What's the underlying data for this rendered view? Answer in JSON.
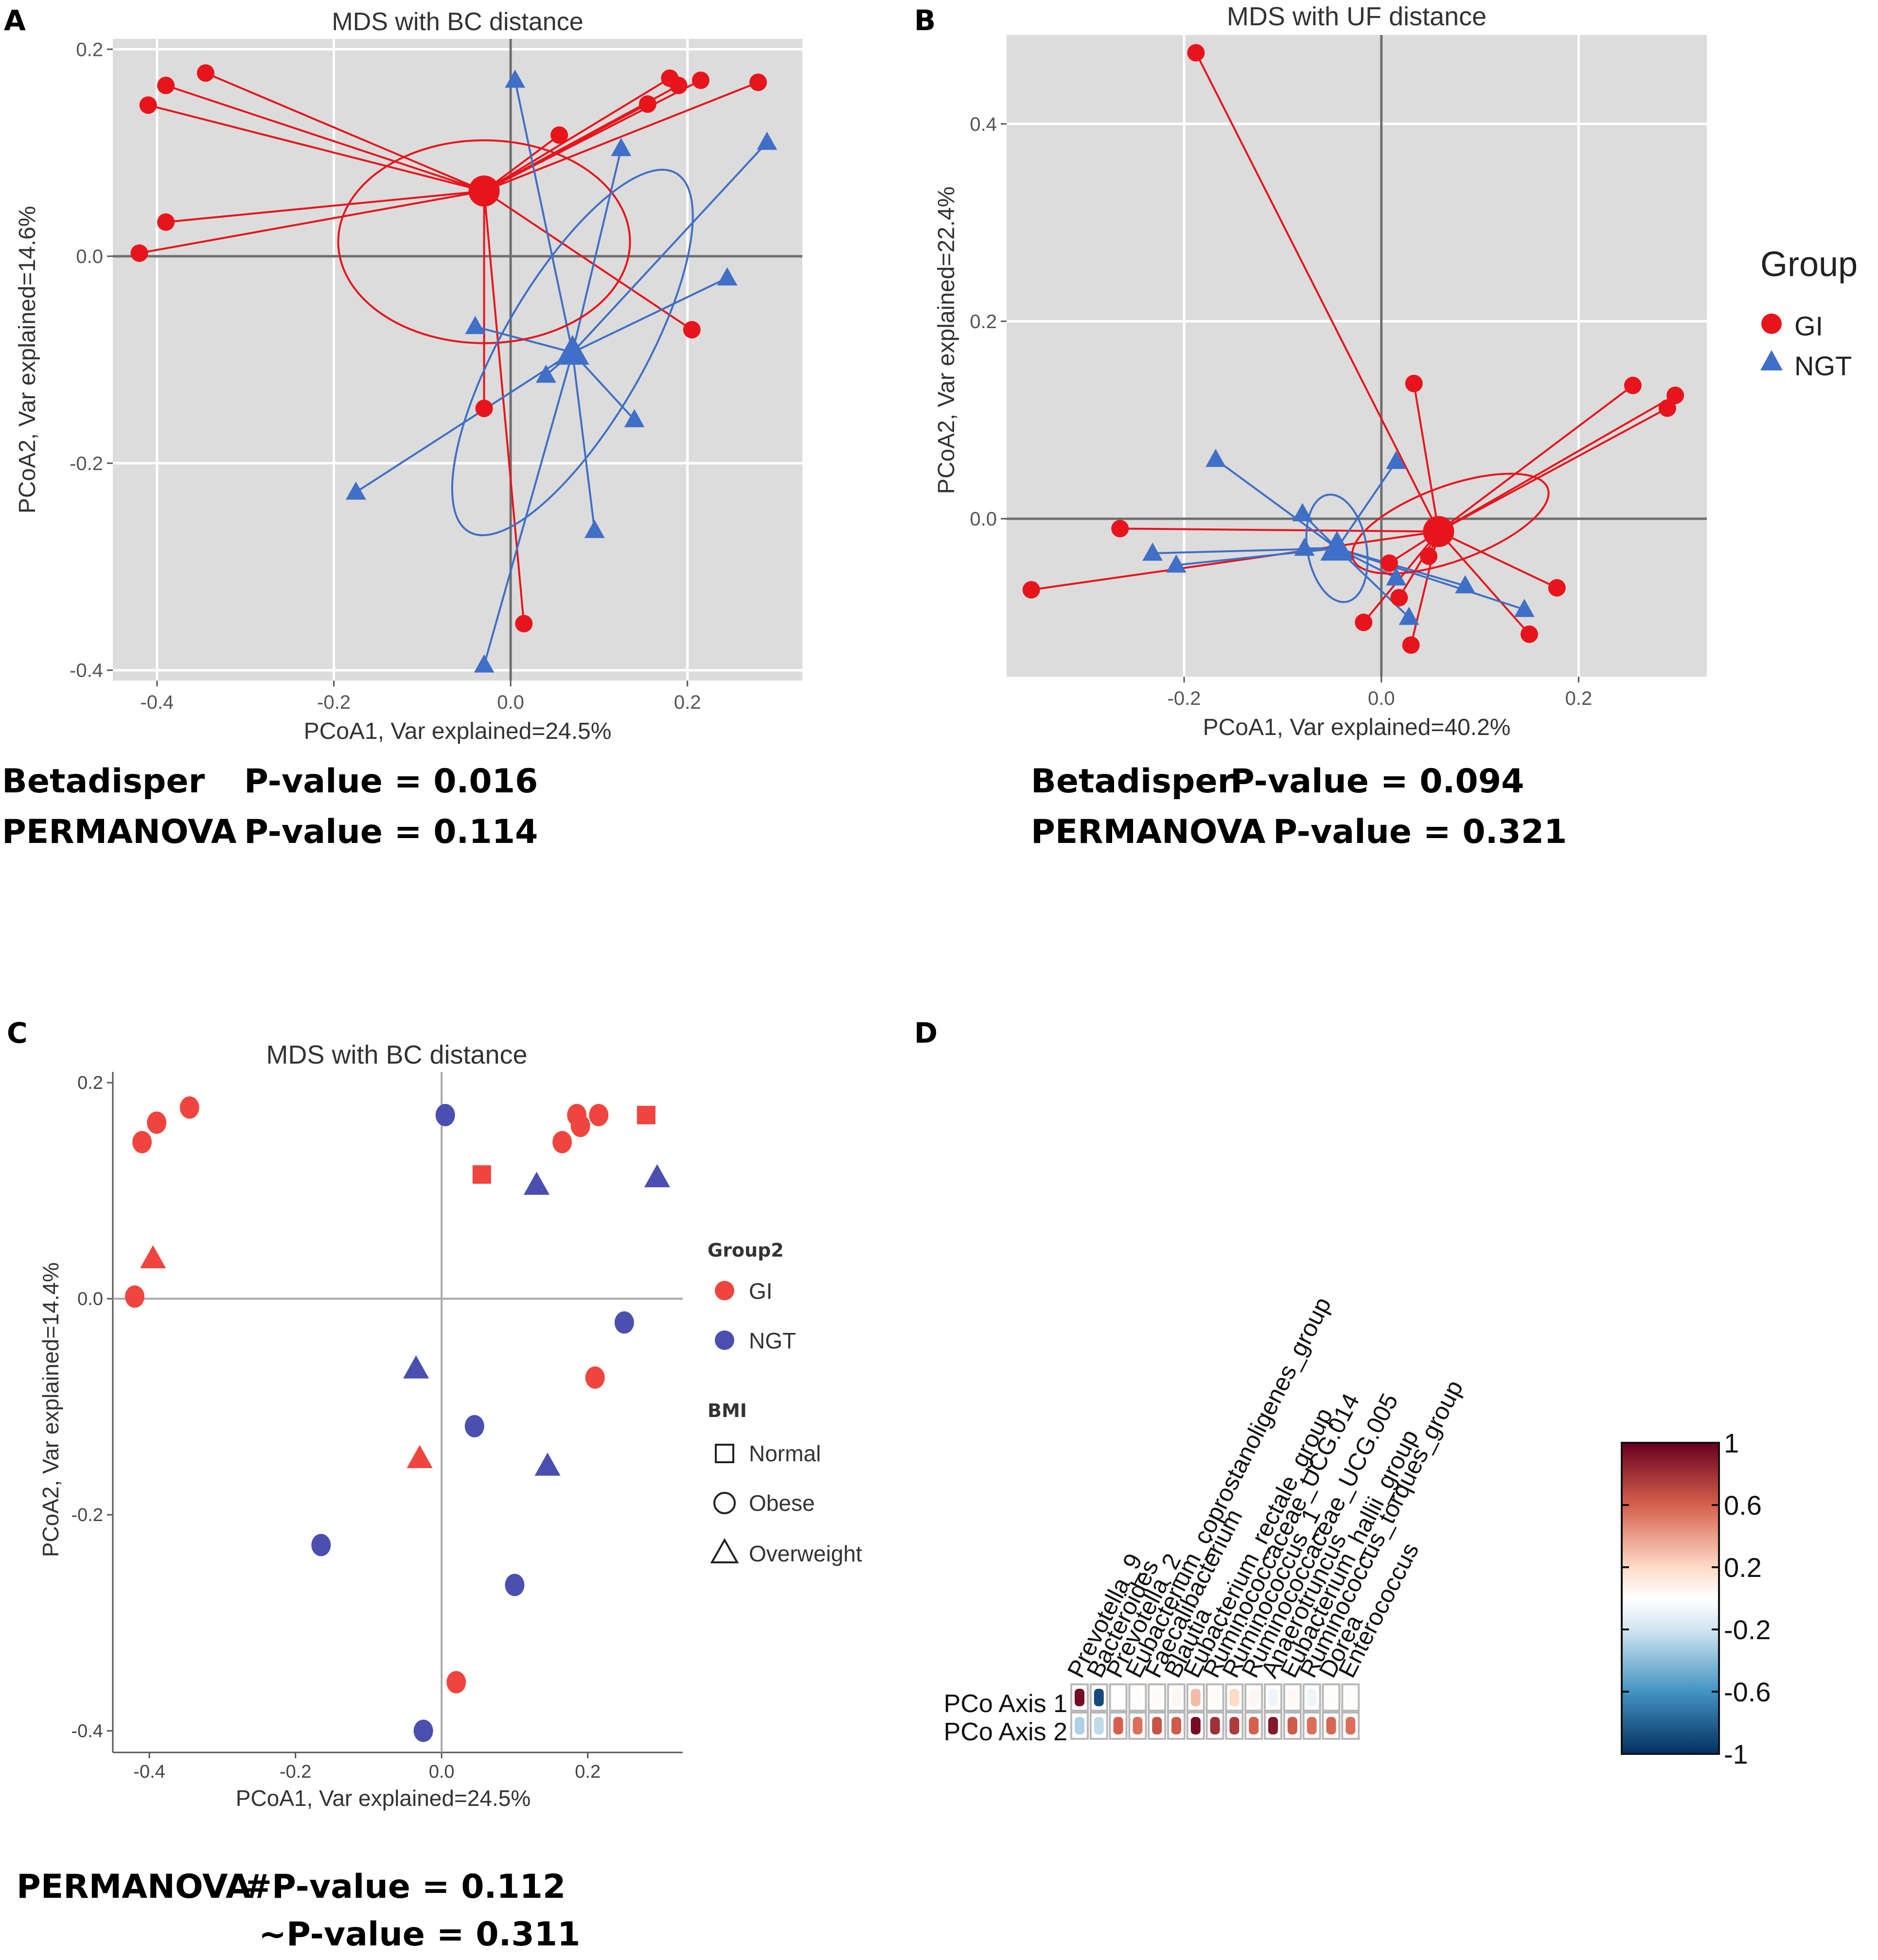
{
  "colors": {
    "gi": "#e8141b",
    "gi_light": "#f0453f",
    "ngt": "#3f6fc6",
    "ngt_c": "#4a4fb0",
    "panel_bg_ab": "#dcdcdc",
    "panel_bg_c": "#ffffff",
    "axis_line": "#6e6e6e"
  },
  "panel_labels": {
    "a": "A",
    "b": "B",
    "c": "C",
    "d": "D"
  },
  "legend_ab": {
    "title": "Group",
    "gi": "GI",
    "ngt": "NGT"
  },
  "legend_c": {
    "group_title": "Group2",
    "gi": "GI",
    "ngt": "NGT",
    "bmi_title": "BMI",
    "normal": "Normal",
    "obese": "Obese",
    "overweight": "Overweight"
  },
  "stats": {
    "a": {
      "line1_label": "Betadisper",
      "line1_value": "P-value = 0.016",
      "line2_label": "PERMANOVA",
      "line2_value": "P-value = 0.114"
    },
    "b": {
      "line1_label": "Betadisper",
      "line1_value": "P-value = 0.094",
      "line2_label": "PERMANOVA",
      "line2_value": "P-value = 0.321"
    },
    "c": {
      "line1_label": "PERMANOVA",
      "line1_value": "#P-value = 0.112",
      "line2_value": "~P-value = 0.311"
    }
  },
  "chart_data": [
    {
      "id": "A",
      "type": "scatter",
      "title": "MDS with BC distance",
      "xlabel": "PCoA1, Var explained=24.5%",
      "ylabel": "PCoA2, Var explained=14.6%",
      "xlim": [
        -0.45,
        0.33
      ],
      "ylim": [
        -0.41,
        0.21
      ],
      "xticks": [
        -0.4,
        -0.2,
        0.0,
        0.2
      ],
      "yticks": [
        -0.4,
        -0.2,
        0.0,
        0.2
      ],
      "xtick_labels": [
        "-0.4",
        "-0.2",
        "0.0",
        "0.2"
      ],
      "ytick_labels": [
        "-0.4",
        "-0.2",
        "0.0",
        "0.2"
      ],
      "series": [
        {
          "name": "GI",
          "shape": "circle",
          "centroid": [
            -0.03,
            0.063
          ],
          "ellipse": {
            "cx": -0.03,
            "cy": 0.014,
            "rx": 0.165,
            "ry": 0.098,
            "angle": 0
          },
          "points": [
            [
              -0.345,
              0.177
            ],
            [
              -0.39,
              0.165
            ],
            [
              -0.41,
              0.146
            ],
            [
              -0.39,
              0.033
            ],
            [
              -0.42,
              0.003
            ],
            [
              0.055,
              0.117
            ],
            [
              0.18,
              0.172
            ],
            [
              0.19,
              0.165
            ],
            [
              0.215,
              0.17
            ],
            [
              0.28,
              0.168
            ],
            [
              0.155,
              0.147
            ],
            [
              0.205,
              -0.071
            ],
            [
              -0.03,
              -0.147
            ],
            [
              0.015,
              -0.355
            ]
          ]
        },
        {
          "name": "NGT",
          "shape": "triangle",
          "centroid": [
            0.07,
            -0.093
          ],
          "ellipse": {
            "cx": 0.07,
            "cy": -0.093,
            "rx": 0.08,
            "ry": 0.2,
            "angle": 30
          },
          "points": [
            [
              0.005,
              0.17
            ],
            [
              0.125,
              0.104
            ],
            [
              0.29,
              0.11
            ],
            [
              0.245,
              -0.021
            ],
            [
              -0.04,
              -0.068
            ],
            [
              0.04,
              -0.115
            ],
            [
              0.14,
              -0.158
            ],
            [
              0.095,
              -0.265
            ],
            [
              -0.175,
              -0.228
            ],
            [
              -0.03,
              -0.395
            ]
          ]
        }
      ]
    },
    {
      "id": "B",
      "type": "scatter",
      "title": "MDS with UF distance",
      "xlabel": "PCoA1, Var explained=40.2%",
      "ylabel": "PCoA2, Var explained=22.4%",
      "xlim": [
        -0.38,
        0.33
      ],
      "ylim": [
        -0.16,
        0.49
      ],
      "xticks": [
        -0.2,
        0.0,
        0.2
      ],
      "yticks": [
        0.0,
        0.2,
        0.4
      ],
      "xtick_labels": [
        "-0.2",
        "0.0",
        "0.2"
      ],
      "ytick_labels": [
        "0.0",
        "0.2",
        "0.4"
      ],
      "series": [
        {
          "name": "GI",
          "shape": "circle",
          "centroid": [
            0.058,
            -0.013
          ],
          "ellipse": {
            "cx": 0.07,
            "cy": -0.005,
            "rx": 0.105,
            "ry": 0.038,
            "angle": -20
          },
          "points": [
            [
              -0.188,
              0.472
            ],
            [
              0.033,
              0.137
            ],
            [
              0.255,
              0.135
            ],
            [
              0.298,
              0.125
            ],
            [
              0.29,
              0.112
            ],
            [
              -0.265,
              -0.01
            ],
            [
              -0.355,
              -0.072
            ],
            [
              0.178,
              -0.07
            ],
            [
              0.048,
              -0.038
            ],
            [
              0.008,
              -0.045
            ],
            [
              0.018,
              -0.08
            ],
            [
              -0.018,
              -0.105
            ],
            [
              0.03,
              -0.128
            ],
            [
              0.15,
              -0.117
            ]
          ]
        },
        {
          "name": "NGT",
          "shape": "triangle",
          "centroid": [
            -0.045,
            -0.03
          ],
          "ellipse": {
            "cx": -0.045,
            "cy": -0.03,
            "rx": 0.03,
            "ry": 0.055,
            "angle": -10
          },
          "points": [
            [
              -0.168,
              0.06
            ],
            [
              0.015,
              0.058
            ],
            [
              -0.08,
              0.005
            ],
            [
              -0.232,
              -0.035
            ],
            [
              -0.208,
              -0.047
            ],
            [
              -0.078,
              -0.03
            ],
            [
              0.085,
              -0.068
            ],
            [
              0.015,
              -0.06
            ],
            [
              0.028,
              -0.1
            ],
            [
              0.145,
              -0.092
            ]
          ]
        }
      ]
    },
    {
      "id": "C",
      "type": "scatter",
      "title": "MDS with BC distance",
      "xlabel": "PCoA1, Var explained=24.5%",
      "ylabel": "PCoA2, Var explained=14.4%",
      "xlim": [
        -0.45,
        0.33
      ],
      "ylim": [
        -0.42,
        0.21
      ],
      "xticks": [
        -0.4,
        -0.2,
        0.0,
        0.2
      ],
      "yticks": [
        -0.4,
        -0.2,
        0.0,
        0.2
      ],
      "xtick_labels": [
        "-0.4",
        "-0.2",
        "0.0",
        "0.2"
      ],
      "ytick_labels": [
        "-0.4",
        "-0.2",
        "0.0",
        "0.2"
      ],
      "points": [
        {
          "x": -0.41,
          "y": 0.145,
          "group": "GI",
          "bmi": "Obese"
        },
        {
          "x": -0.39,
          "y": 0.163,
          "group": "GI",
          "bmi": "Obese"
        },
        {
          "x": -0.345,
          "y": 0.177,
          "group": "GI",
          "bmi": "Obese"
        },
        {
          "x": -0.42,
          "y": 0.002,
          "group": "GI",
          "bmi": "Obese"
        },
        {
          "x": -0.395,
          "y": 0.037,
          "group": "GI",
          "bmi": "Overweight"
        },
        {
          "x": 0.005,
          "y": 0.17,
          "group": "NGT",
          "bmi": "Obese"
        },
        {
          "x": 0.055,
          "y": 0.115,
          "group": "GI",
          "bmi": "Normal"
        },
        {
          "x": 0.13,
          "y": 0.105,
          "group": "NGT",
          "bmi": "Overweight"
        },
        {
          "x": 0.165,
          "y": 0.145,
          "group": "GI",
          "bmi": "Obese"
        },
        {
          "x": 0.185,
          "y": 0.17,
          "group": "GI",
          "bmi": "Obese"
        },
        {
          "x": 0.19,
          "y": 0.16,
          "group": "GI",
          "bmi": "Obese"
        },
        {
          "x": 0.215,
          "y": 0.17,
          "group": "GI",
          "bmi": "Obese"
        },
        {
          "x": 0.28,
          "y": 0.17,
          "group": "GI",
          "bmi": "Normal"
        },
        {
          "x": 0.295,
          "y": 0.112,
          "group": "NGT",
          "bmi": "Overweight"
        },
        {
          "x": 0.25,
          "y": -0.022,
          "group": "NGT",
          "bmi": "Obese"
        },
        {
          "x": 0.21,
          "y": -0.073,
          "group": "GI",
          "bmi": "Obese"
        },
        {
          "x": -0.035,
          "y": -0.065,
          "group": "NGT",
          "bmi": "Overweight"
        },
        {
          "x": 0.045,
          "y": -0.118,
          "group": "NGT",
          "bmi": "Obese"
        },
        {
          "x": -0.03,
          "y": -0.148,
          "group": "GI",
          "bmi": "Overweight"
        },
        {
          "x": 0.145,
          "y": -0.155,
          "group": "NGT",
          "bmi": "Overweight"
        },
        {
          "x": -0.165,
          "y": -0.228,
          "group": "NGT",
          "bmi": "Obese"
        },
        {
          "x": 0.1,
          "y": -0.265,
          "group": "NGT",
          "bmi": "Obese"
        },
        {
          "x": 0.02,
          "y": -0.355,
          "group": "GI",
          "bmi": "Obese"
        },
        {
          "x": -0.025,
          "y": -0.4,
          "group": "NGT",
          "bmi": "Obese"
        }
      ]
    },
    {
      "id": "D",
      "type": "heatmap",
      "rows": [
        "PCo Axis 1",
        "PCo Axis 2"
      ],
      "columns": [
        "Prevotella_9",
        "Bacteroides",
        "Prevotella_2",
        "Eubacterium_coprostanoligenes_group",
        "Faecalibacterium",
        "Blautia",
        "Eubacterium_rectale_group",
        "Ruminococcaceae_UCG.014",
        "Ruminococcus_1",
        "Ruminococcaceae_UCG.005",
        "Anaerotruncus",
        "Eubacterium_hallii_group",
        "Ruminococcus_torques_group",
        "Dorea",
        "Enterococcus"
      ],
      "values": [
        [
          0.95,
          -0.9,
          0.0,
          0.02,
          0.03,
          0.05,
          0.3,
          0.02,
          0.2,
          0.05,
          -0.08,
          0.04,
          -0.08,
          0.02,
          0.02
        ],
        [
          -0.3,
          -0.25,
          0.6,
          0.55,
          0.65,
          0.62,
          0.95,
          0.8,
          0.75,
          0.6,
          0.9,
          0.62,
          0.55,
          0.58,
          0.55
        ]
      ],
      "colorbar_ticks": [
        1,
        0.6,
        0.2,
        -0.2,
        -0.6,
        -1
      ],
      "colorbar_tick_labels": [
        "1",
        "0.6",
        "0.2",
        "-0.2",
        "-0.6",
        "-1"
      ]
    }
  ]
}
